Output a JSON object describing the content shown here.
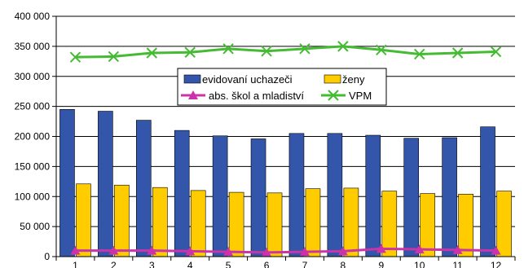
{
  "chart_data": {
    "type": "bar",
    "categories": [
      "1",
      "2",
      "3",
      "4",
      "5",
      "6",
      "7",
      "8",
      "9",
      "10",
      "11",
      "12"
    ],
    "ylim": [
      0,
      400000
    ],
    "yticks": [
      0,
      50000,
      100000,
      150000,
      200000,
      250000,
      300000,
      350000,
      400000
    ],
    "ytick_labels": [
      "0",
      "50 000",
      "100 000",
      "150 000",
      "200 000",
      "250 000",
      "300 000",
      "350 000",
      "400 000"
    ],
    "grid": "horizontal",
    "legend_position": "center",
    "series": [
      {
        "name": "evidovaní uchazeči",
        "type": "bar",
        "color": "#3355aa",
        "values": [
          245000,
          242000,
          227000,
          210000,
          201000,
          196000,
          205000,
          205000,
          202000,
          197000,
          198000,
          216000
        ]
      },
      {
        "name": "ženy",
        "type": "bar",
        "color": "#ffcc00",
        "values": [
          121000,
          119000,
          115000,
          110000,
          107000,
          106000,
          113000,
          114000,
          109000,
          105000,
          104000,
          109000
        ]
      },
      {
        "name": "abs. škol a mladiství",
        "type": "line",
        "color": "#cc33aa",
        "marker": "triangle",
        "values": [
          10000,
          10000,
          10000,
          9000,
          8000,
          7000,
          8000,
          9000,
          13000,
          12000,
          11000,
          10000
        ]
      },
      {
        "name": "VPM",
        "type": "line",
        "color": "#44bb33",
        "marker": "x",
        "values": [
          332000,
          333000,
          339000,
          340000,
          346000,
          342000,
          346000,
          350000,
          344000,
          337000,
          339000,
          341000
        ]
      }
    ]
  }
}
